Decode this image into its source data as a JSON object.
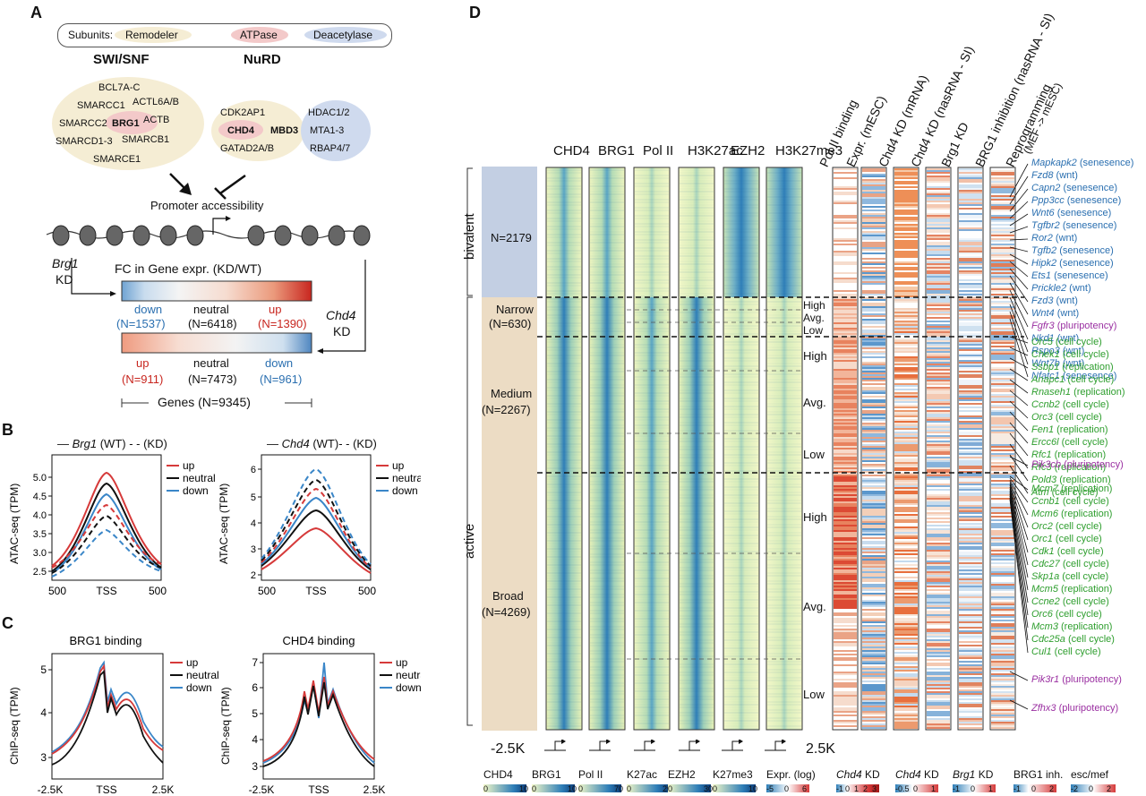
{
  "panels": {
    "A": "A",
    "B": "B",
    "C": "C",
    "D": "D"
  },
  "panelA": {
    "legend": {
      "title": "Subunits:",
      "items": [
        "Remodeler",
        "ATPase",
        "Deacetylase"
      ],
      "colors": [
        "#f5edd4",
        "#f3c9c9",
        "#cfdaee"
      ]
    },
    "swisnf": {
      "title": "SWI/SNF",
      "subunits": [
        "BCL7A-C",
        "SMARCC1",
        "ACTL6A/B",
        "SMARCC2",
        "BRG1",
        "ACTB",
        "SMARCD1-3",
        "SMARCB1",
        "SMARCE1"
      ]
    },
    "nurd": {
      "title": "NuRD",
      "subunits": [
        "CDK2AP1",
        "CHD4",
        "MBD3",
        "GATAD2A/B",
        "HDAC1/2",
        "MTA1-3",
        "RBAP4/7"
      ]
    },
    "promoter": "Promoter accessibility",
    "brg1_kd": {
      "gene": "Brg1",
      "kd": "KD"
    },
    "chd4_kd": {
      "gene": "Chd4",
      "kd": "KD"
    },
    "fc_title": "FC in Gene expr. (KD/WT)",
    "bar1": {
      "labels": [
        "down",
        "neutral",
        "up"
      ],
      "counts": [
        "(N=1537)",
        "(N=6418)",
        "(N=1390)"
      ]
    },
    "bar2": {
      "labels": [
        "up",
        "neutral",
        "down"
      ],
      "counts": [
        "(N=911)",
        "(N=7473)",
        "(N=961)"
      ]
    },
    "genes": "Genes (N=9345)"
  },
  "panelB": {
    "left": {
      "header_gene": "Brg1",
      "header_wt": "(WT)",
      "header_kd": "(KD)",
      "ylabel": "ATAC-seq (TPM)",
      "yticks": [
        "2.5",
        "3.0",
        "3.5",
        "4.0",
        "4.5",
        "5.0"
      ],
      "xticks": [
        "500",
        "TSS",
        "500"
      ]
    },
    "right": {
      "header_gene": "Chd4",
      "header_wt": "(WT)",
      "header_kd": "(KD)",
      "ylabel": "ATAC-seq (TPM)",
      "yticks": [
        "2",
        "3",
        "4",
        "5",
        "6"
      ],
      "xticks": [
        "500",
        "TSS",
        "500"
      ]
    },
    "legend": [
      "up",
      "neutral",
      "down"
    ]
  },
  "panelC": {
    "left": {
      "title": "BRG1 binding",
      "ylabel": "ChIP-seq (TPM)",
      "yticks": [
        "3",
        "4",
        "5"
      ],
      "xticks": [
        "-2.5K",
        "TSS",
        "2.5K"
      ]
    },
    "right": {
      "title": "CHD4 binding",
      "ylabel": "ChIP-seq (TPM)",
      "yticks": [
        "3",
        "4",
        "5",
        "6",
        "7"
      ],
      "xticks": [
        "-2.5K",
        "TSS",
        "2.5K"
      ]
    },
    "legend": [
      "up",
      "neutral",
      "down"
    ]
  },
  "series_colors": {
    "up": "#d63a3a",
    "neutral": "#111111",
    "down": "#3a86c8"
  },
  "panelD": {
    "columns": [
      "CHD4",
      "BRG1",
      "Pol II",
      "H3K27ac",
      "EZH2",
      "H3K27me3",
      "Pol II binding",
      "Expr. (mESC)",
      "Chd4 KD (mRNA)",
      "Chd4 KD (nasRNA - SI)",
      "Brg1 KD",
      "BRG1 inhibition (nasRNA - SI)",
      "Reprogramming",
      "(MEF -> mESC)"
    ],
    "groups": {
      "bivalent": "bivalent",
      "active": "active"
    },
    "classes": [
      {
        "name": "N=2179"
      },
      {
        "name": "Narrow",
        "n": "(N=630)"
      },
      {
        "name": "Medium",
        "n": "(N=2267)"
      },
      {
        "name": "Broad",
        "n": "(N=4269)"
      }
    ],
    "levels": [
      "High",
      "Avg.",
      "Low"
    ],
    "x_left": "-2.5K",
    "x_right": "2.5K",
    "genes": [
      {
        "g": "Mapkapk2",
        "t": "(senesence)",
        "c": "blue"
      },
      {
        "g": "Fzd8",
        "t": "(wnt)",
        "c": "blue"
      },
      {
        "g": "Capn2",
        "t": "(senesence)",
        "c": "blue"
      },
      {
        "g": "Ppp3cc",
        "t": "(senesence)",
        "c": "blue"
      },
      {
        "g": "Wnt6",
        "t": "(senesence)",
        "c": "blue"
      },
      {
        "g": "Tgfbr2",
        "t": "(senesence)",
        "c": "blue"
      },
      {
        "g": "Ror2",
        "t": "(wnt)",
        "c": "blue"
      },
      {
        "g": "Tgfb2",
        "t": "(senesence)",
        "c": "blue"
      },
      {
        "g": "Hipk2",
        "t": "(senesence)",
        "c": "blue"
      },
      {
        "g": "Ets1",
        "t": "(senesence)",
        "c": "blue"
      },
      {
        "g": "Prickle2",
        "t": "(wnt)",
        "c": "blue"
      },
      {
        "g": "Fzd3",
        "t": "(wnt)",
        "c": "blue"
      },
      {
        "g": "Wnt4",
        "t": "(wnt)",
        "c": "blue"
      },
      {
        "g": "Fgfr3",
        "t": "(pluripotency)",
        "c": "purple"
      },
      {
        "g": "Nkd1",
        "t": "(wnt)",
        "c": "blue"
      },
      {
        "g": "Rspo3",
        "t": "(wnt)",
        "c": "blue"
      },
      {
        "g": "Wnt7b",
        "t": "(wnt)",
        "c": "blue"
      },
      {
        "g": "Nfatc1",
        "t": "(senesence)",
        "c": "blue"
      },
      {
        "g": "Orc5",
        "t": "(cell cycle)",
        "c": "green"
      },
      {
        "g": "Chek1",
        "t": "(cell cycle)",
        "c": "green"
      },
      {
        "g": "Ssbp1",
        "t": "(replication)",
        "c": "green"
      },
      {
        "g": "Anapc1",
        "t": "(cell cycle)",
        "c": "green"
      },
      {
        "g": "Rnaseh1",
        "t": "(replication)",
        "c": "green"
      },
      {
        "g": "Ccnb2",
        "t": "(cell cycle)",
        "c": "green"
      },
      {
        "g": "Orc3",
        "t": "(cell cycle)",
        "c": "green"
      },
      {
        "g": "Fen1",
        "t": "(replication)",
        "c": "green"
      },
      {
        "g": "Ercc6l",
        "t": "(cell cycle)",
        "c": "green"
      },
      {
        "g": "Rfc1",
        "t": "(replication)",
        "c": "green"
      },
      {
        "g": "Rfc3",
        "t": "(replication)",
        "c": "green"
      },
      {
        "g": "Pold3",
        "t": "(replication)",
        "c": "green"
      },
      {
        "g": "Atm",
        "t": "(cell cycle)",
        "c": "green"
      },
      {
        "g": "Pik3cb",
        "t": "(pluripotency)",
        "c": "purple"
      },
      {
        "g": "Mcm7",
        "t": "(replication)",
        "c": "green"
      },
      {
        "g": "Ccnb1",
        "t": "(cell cycle)",
        "c": "green"
      },
      {
        "g": "Mcm6",
        "t": "(replication)",
        "c": "green"
      },
      {
        "g": "Orc2",
        "t": "(cell cycle)",
        "c": "green"
      },
      {
        "g": "Orc1",
        "t": "(cell cycle)",
        "c": "green"
      },
      {
        "g": "Cdk1",
        "t": "(cell cycle)",
        "c": "green"
      },
      {
        "g": "Cdc27",
        "t": "(cell cycle)",
        "c": "green"
      },
      {
        "g": "Skp1a",
        "t": "(cell cycle)",
        "c": "green"
      },
      {
        "g": "Mcm5",
        "t": "(replication)",
        "c": "green"
      },
      {
        "g": "Ccne2",
        "t": "(cell cycle)",
        "c": "green"
      },
      {
        "g": "Orc6",
        "t": "(cell cycle)",
        "c": "green"
      },
      {
        "g": "Mcm3",
        "t": "(replication)",
        "c": "green"
      },
      {
        "g": "Cdc25a",
        "t": "(cell cycle)",
        "c": "green"
      },
      {
        "g": "Cul1",
        "t": "(cell cycle)",
        "c": "green"
      },
      {
        "g": "Pik3r1",
        "t": "(pluripotency)",
        "c": "purple"
      },
      {
        "g": "Zfhx3",
        "t": "(pluripotency)",
        "c": "purple"
      }
    ],
    "colorbars": [
      {
        "label": "CHD4",
        "ticks": [
          "0",
          "10"
        ]
      },
      {
        "label": "BRG1",
        "ticks": [
          "0",
          "10"
        ]
      },
      {
        "label": "Pol II",
        "ticks": [
          "0",
          "70"
        ]
      },
      {
        "label": "K27ac",
        "ticks": [
          "0",
          "25"
        ]
      },
      {
        "label": "EZH2",
        "ticks": [
          "0",
          "30"
        ]
      },
      {
        "label": "K27me3",
        "ticks": [
          "0",
          "10"
        ]
      },
      {
        "label": "Expr. (log)",
        "ticks": [
          "-5",
          "0",
          "6"
        ]
      },
      {
        "label": "Chd4 KD",
        "ticks": [
          "-1",
          "0",
          "1",
          "2",
          "3"
        ]
      },
      {
        "label": "Chd4 KD",
        "ticks": [
          "-0.5",
          "0",
          "1"
        ]
      },
      {
        "label": "Brg1 KD",
        "ticks": [
          "-1",
          "0",
          "1"
        ]
      },
      {
        "label": "BRG1 inh.",
        "ticks": [
          "-1",
          "0",
          "2"
        ]
      },
      {
        "label": "esc/mef",
        "ticks": [
          "-2",
          "0",
          "2"
        ]
      }
    ]
  }
}
